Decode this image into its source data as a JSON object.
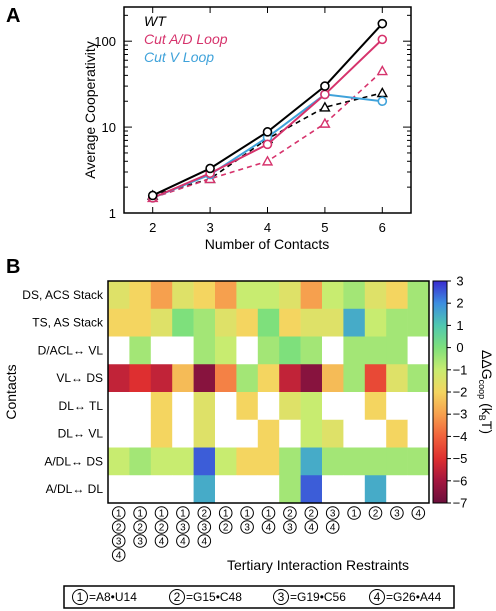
{
  "panel_labels": {
    "a": "A",
    "b": "B"
  },
  "chart_data": [
    {
      "type": "line",
      "panel": "A",
      "xlabel": "Number of Contacts",
      "ylabel": "Average Cooperativity",
      "x": [
        2,
        3,
        4,
        5,
        6
      ],
      "xlim": [
        1.5,
        6.5
      ],
      "ylim": [
        1,
        250
      ],
      "yscale": "log",
      "yticks": [
        1,
        10,
        100
      ],
      "ytick_labels": [
        "1",
        "10",
        "100"
      ],
      "xtick_labels": [
        "2",
        "3",
        "4",
        "5",
        "6"
      ],
      "legend_position": "top-left",
      "series": [
        {
          "name": "WT",
          "color": "#000000",
          "dash": "solid",
          "marker": "circle",
          "values": [
            1.6,
            3.3,
            8.8,
            30,
            160
          ]
        },
        {
          "name": "Cut A/D Loop",
          "color": "#d6336c",
          "dash": "solid",
          "marker": "circle",
          "values": [
            1.5,
            2.9,
            6.3,
            24,
            105
          ]
        },
        {
          "name": "Cut V Loop",
          "color": "#3fa2da",
          "dash": "solid",
          "marker": "circle",
          "values": [
            1.5,
            2.8,
            7.6,
            24,
            20
          ]
        },
        {
          "name": "",
          "color": "#000000",
          "dash": "dashed",
          "marker": "triangle",
          "values": [
            1.6,
            2.5,
            7.3,
            17,
            25
          ]
        },
        {
          "name": "",
          "color": "#d6336c",
          "dash": "dashed",
          "marker": "triangle",
          "values": [
            1.5,
            2.5,
            4.0,
            11,
            45
          ]
        }
      ]
    },
    {
      "type": "heatmap",
      "panel": "B",
      "xlabel": "Tertiary Interaction Restraints",
      "ylabel": "Contacts",
      "rows": [
        "DS, ACS Stack",
        "TS, AS Stack",
        "D/ACL↔ VL",
        "VL↔ DS",
        "DL↔ TL",
        "DL↔ VL",
        "A/DL↔ DS",
        "A/DL↔ DL"
      ],
      "columns": [
        [
          "1",
          "2",
          "3",
          "4"
        ],
        [
          "1",
          "2",
          "3"
        ],
        [
          "1",
          "2",
          "4"
        ],
        [
          "1",
          "3",
          "4"
        ],
        [
          "2",
          "3",
          "4"
        ],
        [
          "1",
          "2"
        ],
        [
          "1",
          "3"
        ],
        [
          "1",
          "4"
        ],
        [
          "2",
          "3"
        ],
        [
          "2",
          "4"
        ],
        [
          "3",
          "4"
        ],
        [
          "1"
        ],
        [
          "2"
        ],
        [
          "3"
        ],
        [
          "4"
        ]
      ],
      "values": [
        [
          -1.5,
          -2.0,
          -3.0,
          -1.5,
          -2.0,
          -3.0,
          -1.0,
          -1.0,
          -1.5,
          -3.0,
          -1.0,
          -0.5,
          -1.5,
          -2.0,
          -0.5
        ],
        [
          -2.0,
          -2.0,
          -1.5,
          0.0,
          -0.5,
          -1.5,
          -2.0,
          0.0,
          -2.0,
          -1.5,
          -1.5,
          1.5,
          -1.0,
          -0.5,
          -0.5
        ],
        [
          null,
          -0.5,
          null,
          null,
          -0.5,
          -1.0,
          null,
          -0.5,
          0.0,
          -0.5,
          null,
          -0.5,
          -0.5,
          -0.5,
          null
        ],
        [
          -5.5,
          -5.0,
          -5.5,
          -2.5,
          -6.5,
          -3.5,
          -0.5,
          -2.0,
          -5.5,
          -6.5,
          -2.5,
          -0.5,
          -4.5,
          -1.5,
          -0.5
        ],
        [
          null,
          null,
          -2.0,
          null,
          -1.5,
          null,
          -2.0,
          null,
          -1.5,
          -1.0,
          null,
          null,
          -2.0,
          null,
          null
        ],
        [
          null,
          null,
          -2.0,
          null,
          -1.5,
          null,
          null,
          -2.0,
          null,
          -1.0,
          -1.5,
          null,
          null,
          -2.0,
          null
        ],
        [
          -1.0,
          -0.5,
          -1.0,
          -1.0,
          2.5,
          -1.0,
          -2.0,
          -2.0,
          -0.5,
          1.5,
          -0.5,
          -0.5,
          -0.5,
          -0.5,
          -0.5
        ],
        [
          null,
          null,
          null,
          null,
          1.5,
          null,
          null,
          null,
          -0.5,
          2.5,
          null,
          null,
          1.5,
          null,
          null
        ]
      ],
      "colorbar": {
        "label": "ΔΔG",
        "label_sub": "coop",
        "label_unit": "(k",
        "label_unit_sub": "B",
        "label_unit_end": "T)",
        "min": -7,
        "max": 3,
        "ticks": [
          3,
          2,
          1,
          0,
          -1,
          -2,
          -3,
          -4,
          -5,
          -6,
          -7
        ],
        "tick_labels": [
          "3",
          "2",
          "1",
          "0",
          "−1",
          "−2",
          "−3",
          "−4",
          "−5",
          "−6",
          "−7"
        ],
        "stops": [
          {
            "v": -7,
            "c": "#6b0f3c"
          },
          {
            "v": -6,
            "c": "#a3163f"
          },
          {
            "v": -5,
            "c": "#de2f30"
          },
          {
            "v": -4,
            "c": "#f1623c"
          },
          {
            "v": -3,
            "c": "#f6a04e"
          },
          {
            "v": -2,
            "c": "#f4d560"
          },
          {
            "v": -1,
            "c": "#c8ec70"
          },
          {
            "v": 0,
            "c": "#7ee07c"
          },
          {
            "v": 1,
            "c": "#4fc8b0"
          },
          {
            "v": 2,
            "c": "#3d8ee0"
          },
          {
            "v": 3,
            "c": "#3a2bd0"
          }
        ]
      },
      "key": [
        {
          "num": "1",
          "text": "=A8•U14"
        },
        {
          "num": "2",
          "text": "=G15•C48"
        },
        {
          "num": "3",
          "text": "=G19•C56"
        },
        {
          "num": "4",
          "text": "=G26•A44"
        }
      ]
    }
  ]
}
